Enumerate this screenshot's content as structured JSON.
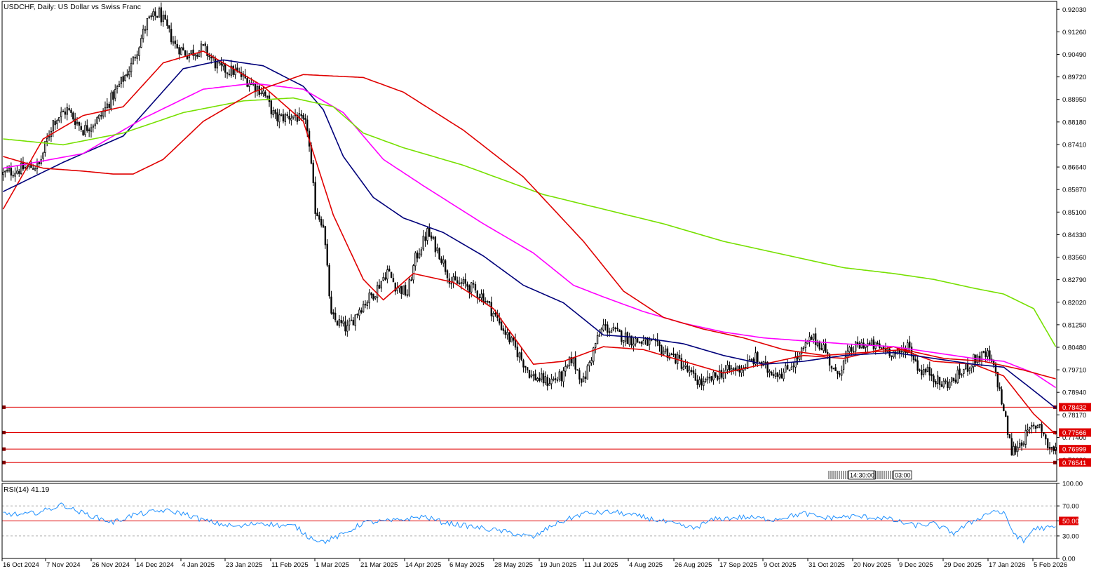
{
  "chart_data": {
    "type": "candlestick",
    "title": "USDCHF, Daily:  US Dollar vs Swiss Franc",
    "symbol": "USDCHF",
    "timeframe": "Daily",
    "description": "US Dollar vs Swiss Franc",
    "ylim": [
      0.759,
      0.923
    ],
    "y_ticks": [
      "0.92030",
      "0.91260",
      "0.90490",
      "0.89720",
      "0.88950",
      "0.88180",
      "0.87410",
      "0.86640",
      "0.85870",
      "0.85100",
      "0.84330",
      "0.83560",
      "0.82790",
      "0.82020",
      "0.81250",
      "0.80480",
      "0.79710",
      "0.78940",
      "0.78170",
      "0.77400",
      "0.76630"
    ],
    "x_labels": [
      "16 Oct 2024",
      "7 Nov 2024",
      "26 Nov 2024",
      "14 Dec 2024",
      "4 Jan 2025",
      "23 Jan 2025",
      "11 Feb 2025",
      "1 Mar 2025",
      "21 Mar 2025",
      "14 Apr 2025",
      "6 May 2025",
      "28 May 2025",
      "19 Jun 2025",
      "11 Jul 2025",
      "4 Aug 2025",
      "26 Aug 2025",
      "17 Sep 2025",
      "9 Oct 2025",
      "31 Oct 2025",
      "20 Nov 2025",
      "9 Dec 2025",
      "29 Dec 2025",
      "17 Jan 2026",
      "5 Feb 2026"
    ],
    "price_anchors": [
      [
        0,
        0.864
      ],
      [
        10,
        0.866
      ],
      [
        18,
        0.867
      ],
      [
        25,
        0.882
      ],
      [
        32,
        0.886
      ],
      [
        40,
        0.879
      ],
      [
        48,
        0.883
      ],
      [
        56,
        0.892
      ],
      [
        64,
        0.901
      ],
      [
        72,
        0.916
      ],
      [
        78,
        0.919
      ],
      [
        86,
        0.908
      ],
      [
        92,
        0.905
      ],
      [
        100,
        0.907
      ],
      [
        108,
        0.9
      ],
      [
        116,
        0.899
      ],
      [
        122,
        0.896
      ],
      [
        130,
        0.892
      ],
      [
        136,
        0.883
      ],
      [
        146,
        0.884
      ],
      [
        152,
        0.88
      ],
      [
        156,
        0.852
      ],
      [
        160,
        0.847
      ],
      [
        164,
        0.815
      ],
      [
        172,
        0.811
      ],
      [
        178,
        0.818
      ],
      [
        186,
        0.824
      ],
      [
        192,
        0.831
      ],
      [
        196,
        0.826
      ],
      [
        202,
        0.823
      ],
      [
        206,
        0.835
      ],
      [
        212,
        0.844
      ],
      [
        218,
        0.837
      ],
      [
        224,
        0.827
      ],
      [
        232,
        0.826
      ],
      [
        240,
        0.822
      ],
      [
        250,
        0.811
      ],
      [
        258,
        0.802
      ],
      [
        264,
        0.795
      ],
      [
        272,
        0.793
      ],
      [
        280,
        0.795
      ],
      [
        284,
        0.801
      ],
      [
        290,
        0.793
      ],
      [
        296,
        0.806
      ],
      [
        300,
        0.812
      ],
      [
        308,
        0.809
      ],
      [
        316,
        0.807
      ],
      [
        324,
        0.806
      ],
      [
        332,
        0.803
      ],
      [
        338,
        0.8
      ],
      [
        344,
        0.795
      ],
      [
        350,
        0.792
      ],
      [
        358,
        0.796
      ],
      [
        364,
        0.797
      ],
      [
        370,
        0.798
      ],
      [
        376,
        0.801
      ],
      [
        382,
        0.797
      ],
      [
        390,
        0.796
      ],
      [
        398,
        0.802
      ],
      [
        404,
        0.808
      ],
      [
        410,
        0.805
      ],
      [
        416,
        0.795
      ],
      [
        424,
        0.804
      ],
      [
        430,
        0.806
      ],
      [
        436,
        0.805
      ],
      [
        442,
        0.804
      ],
      [
        448,
        0.802
      ],
      [
        452,
        0.806
      ],
      [
        458,
        0.797
      ],
      [
        464,
        0.796
      ],
      [
        468,
        0.792
      ],
      [
        474,
        0.793
      ],
      [
        480,
        0.797
      ],
      [
        486,
        0.801
      ],
      [
        492,
        0.802
      ],
      [
        496,
        0.796
      ],
      [
        500,
        0.783
      ],
      [
        504,
        0.769
      ],
      [
        508,
        0.772
      ],
      [
        514,
        0.777
      ],
      [
        518,
        0.779
      ],
      [
        522,
        0.771
      ],
      [
        526,
        0.7695
      ]
    ],
    "moving_averages": [
      {
        "period": 21,
        "color": "#e00000",
        "anchors": [
          [
            0,
            0.852
          ],
          [
            20,
            0.876
          ],
          [
            40,
            0.884
          ],
          [
            60,
            0.887
          ],
          [
            80,
            0.902
          ],
          [
            100,
            0.906
          ],
          [
            115,
            0.9
          ],
          [
            130,
            0.894
          ],
          [
            150,
            0.882
          ],
          [
            165,
            0.85
          ],
          [
            180,
            0.828
          ],
          [
            190,
            0.821
          ],
          [
            205,
            0.83
          ],
          [
            225,
            0.827
          ],
          [
            245,
            0.818
          ],
          [
            265,
            0.799
          ],
          [
            280,
            0.8
          ],
          [
            300,
            0.805
          ],
          [
            320,
            0.804
          ],
          [
            340,
            0.8
          ],
          [
            360,
            0.796
          ],
          [
            380,
            0.799
          ],
          [
            400,
            0.802
          ],
          [
            420,
            0.801
          ],
          [
            445,
            0.805
          ],
          [
            465,
            0.8
          ],
          [
            485,
            0.799
          ],
          [
            500,
            0.795
          ],
          [
            515,
            0.782
          ],
          [
            526,
            0.775
          ]
        ]
      },
      {
        "period": 50,
        "color": "#00007a",
        "anchors": [
          [
            0,
            0.858
          ],
          [
            30,
            0.868
          ],
          [
            60,
            0.877
          ],
          [
            90,
            0.9
          ],
          [
            110,
            0.903
          ],
          [
            130,
            0.901
          ],
          [
            150,
            0.894
          ],
          [
            160,
            0.886
          ],
          [
            170,
            0.87
          ],
          [
            185,
            0.856
          ],
          [
            200,
            0.849
          ],
          [
            220,
            0.844
          ],
          [
            240,
            0.836
          ],
          [
            260,
            0.826
          ],
          [
            280,
            0.82
          ],
          [
            300,
            0.809
          ],
          [
            320,
            0.808
          ],
          [
            340,
            0.806
          ],
          [
            360,
            0.802
          ],
          [
            380,
            0.799
          ],
          [
            400,
            0.8
          ],
          [
            420,
            0.802
          ],
          [
            445,
            0.803
          ],
          [
            465,
            0.801
          ],
          [
            485,
            0.799
          ],
          [
            500,
            0.798
          ],
          [
            515,
            0.79
          ],
          [
            526,
            0.784
          ]
        ]
      },
      {
        "period": 100,
        "color": "#ff00ff",
        "anchors": [
          [
            0,
            0.866
          ],
          [
            40,
            0.871
          ],
          [
            70,
            0.883
          ],
          [
            100,
            0.893
          ],
          [
            125,
            0.895
          ],
          [
            150,
            0.893
          ],
          [
            170,
            0.885
          ],
          [
            190,
            0.869
          ],
          [
            210,
            0.86
          ],
          [
            240,
            0.847
          ],
          [
            265,
            0.837
          ],
          [
            285,
            0.826
          ],
          [
            300,
            0.822
          ],
          [
            320,
            0.817
          ],
          [
            340,
            0.813
          ],
          [
            360,
            0.81
          ],
          [
            380,
            0.808
          ],
          [
            400,
            0.807
          ],
          [
            420,
            0.806
          ],
          [
            445,
            0.805
          ],
          [
            465,
            0.803
          ],
          [
            485,
            0.801
          ],
          [
            500,
            0.8
          ],
          [
            515,
            0.796
          ],
          [
            526,
            0.791
          ]
        ]
      },
      {
        "period": 200,
        "color": "#76e000",
        "anchors": [
          [
            0,
            0.876
          ],
          [
            30,
            0.874
          ],
          [
            60,
            0.878
          ],
          [
            90,
            0.885
          ],
          [
            120,
            0.889
          ],
          [
            145,
            0.89
          ],
          [
            165,
            0.887
          ],
          [
            180,
            0.878
          ],
          [
            200,
            0.873
          ],
          [
            230,
            0.867
          ],
          [
            250,
            0.862
          ],
          [
            270,
            0.857
          ],
          [
            300,
            0.852
          ],
          [
            330,
            0.847
          ],
          [
            360,
            0.841
          ],
          [
            380,
            0.838
          ],
          [
            400,
            0.835
          ],
          [
            420,
            0.832
          ],
          [
            445,
            0.83
          ],
          [
            465,
            0.828
          ],
          [
            485,
            0.825
          ],
          [
            500,
            0.823
          ],
          [
            515,
            0.818
          ],
          [
            526,
            0.805
          ]
        ]
      },
      {
        "period": 365,
        "color": "#e00000",
        "anchors": [
          [
            0,
            0.87
          ],
          [
            20,
            0.866
          ],
          [
            40,
            0.865
          ],
          [
            55,
            0.864
          ],
          [
            65,
            0.864
          ],
          [
            80,
            0.869
          ],
          [
            100,
            0.882
          ],
          [
            125,
            0.892
          ],
          [
            150,
            0.898
          ],
          [
            180,
            0.897
          ],
          [
            200,
            0.892
          ],
          [
            230,
            0.879
          ],
          [
            260,
            0.863
          ],
          [
            290,
            0.841
          ],
          [
            310,
            0.824
          ],
          [
            330,
            0.815
          ],
          [
            350,
            0.811
          ],
          [
            370,
            0.808
          ],
          [
            390,
            0.804
          ],
          [
            410,
            0.802
          ],
          [
            430,
            0.803
          ],
          [
            450,
            0.804
          ],
          [
            470,
            0.801
          ],
          [
            490,
            0.8
          ],
          [
            510,
            0.797
          ],
          [
            526,
            0.794
          ]
        ]
      }
    ],
    "horizontal_lines": [
      {
        "value": 0.78432,
        "label": "0.78432",
        "color": "#e00000"
      },
      {
        "value": 0.77566,
        "label": "0.77566",
        "color": "#e00000"
      },
      {
        "value": 0.76999,
        "label": "0.76999",
        "color": "#e00000"
      },
      {
        "value": 0.76541,
        "label": "0.76541",
        "color": "#e00000"
      }
    ],
    "time_markers": [
      "14:30:00",
      "03:00"
    ],
    "rsi": {
      "label": "RSI(14) 41.19",
      "period": 14,
      "value": 41.19,
      "ylim": [
        0,
        100
      ],
      "y_ticks": [
        "100.00",
        "70.00",
        "50.00",
        "30.00",
        "0.00"
      ],
      "levels": [
        70,
        50,
        30
      ],
      "highlighted_level": "50.00",
      "anchors": [
        [
          0,
          60
        ],
        [
          10,
          58
        ],
        [
          20,
          63
        ],
        [
          30,
          72
        ],
        [
          35,
          65
        ],
        [
          45,
          56
        ],
        [
          55,
          48
        ],
        [
          65,
          58
        ],
        [
          80,
          64
        ],
        [
          90,
          60
        ],
        [
          100,
          51
        ],
        [
          108,
          46
        ],
        [
          118,
          42
        ],
        [
          128,
          48
        ],
        [
          138,
          44
        ],
        [
          146,
          43
        ],
        [
          152,
          30
        ],
        [
          160,
          22
        ],
        [
          170,
          32
        ],
        [
          180,
          48
        ],
        [
          195,
          50
        ],
        [
          210,
          56
        ],
        [
          220,
          48
        ],
        [
          235,
          42
        ],
        [
          250,
          36
        ],
        [
          265,
          28
        ],
        [
          275,
          45
        ],
        [
          290,
          60
        ],
        [
          305,
          62
        ],
        [
          320,
          55
        ],
        [
          335,
          46
        ],
        [
          345,
          40
        ],
        [
          355,
          52
        ],
        [
          370,
          55
        ],
        [
          385,
          52
        ],
        [
          400,
          60
        ],
        [
          410,
          54
        ],
        [
          425,
          56
        ],
        [
          440,
          54
        ],
        [
          455,
          44
        ],
        [
          465,
          46
        ],
        [
          475,
          34
        ],
        [
          485,
          50
        ],
        [
          495,
          64
        ],
        [
          500,
          60
        ],
        [
          505,
          34
        ],
        [
          510,
          22
        ],
        [
          515,
          40
        ],
        [
          526,
          41
        ]
      ]
    }
  }
}
